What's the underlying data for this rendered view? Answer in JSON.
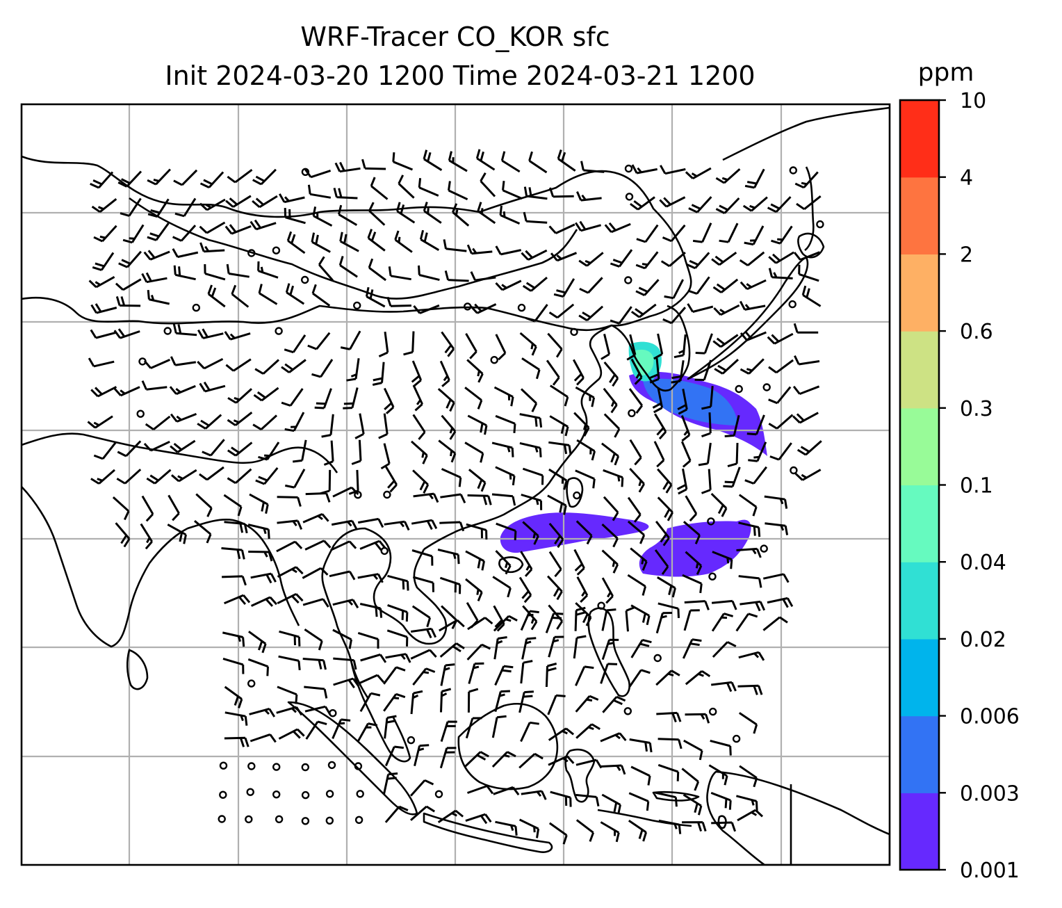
{
  "figure": {
    "title_line1": "WRF-Tracer CO_KOR sfc",
    "title_line2": "Init 2024-03-20 1200 Time 2024-03-21 1200"
  },
  "colorbar": {
    "unit": "ppm",
    "levels": [
      "0.001",
      "0.003",
      "0.006",
      "0.02",
      "0.04",
      "0.1",
      "0.3",
      "0.6",
      "2",
      "4",
      "10"
    ],
    "colors": [
      "#6629fe",
      "#3273f4",
      "#00b4ec",
      "#30e0d4",
      "#66fabf",
      "#98fb98",
      "#cde284",
      "#feb064",
      "#fe7440",
      "#ff2e18"
    ]
  },
  "map": {
    "field": "CO_KOR",
    "vector_type": "wind barbs",
    "gridlines": "on",
    "coastline_color": "#000000",
    "gridline_color": "#b0b0b0"
  }
}
